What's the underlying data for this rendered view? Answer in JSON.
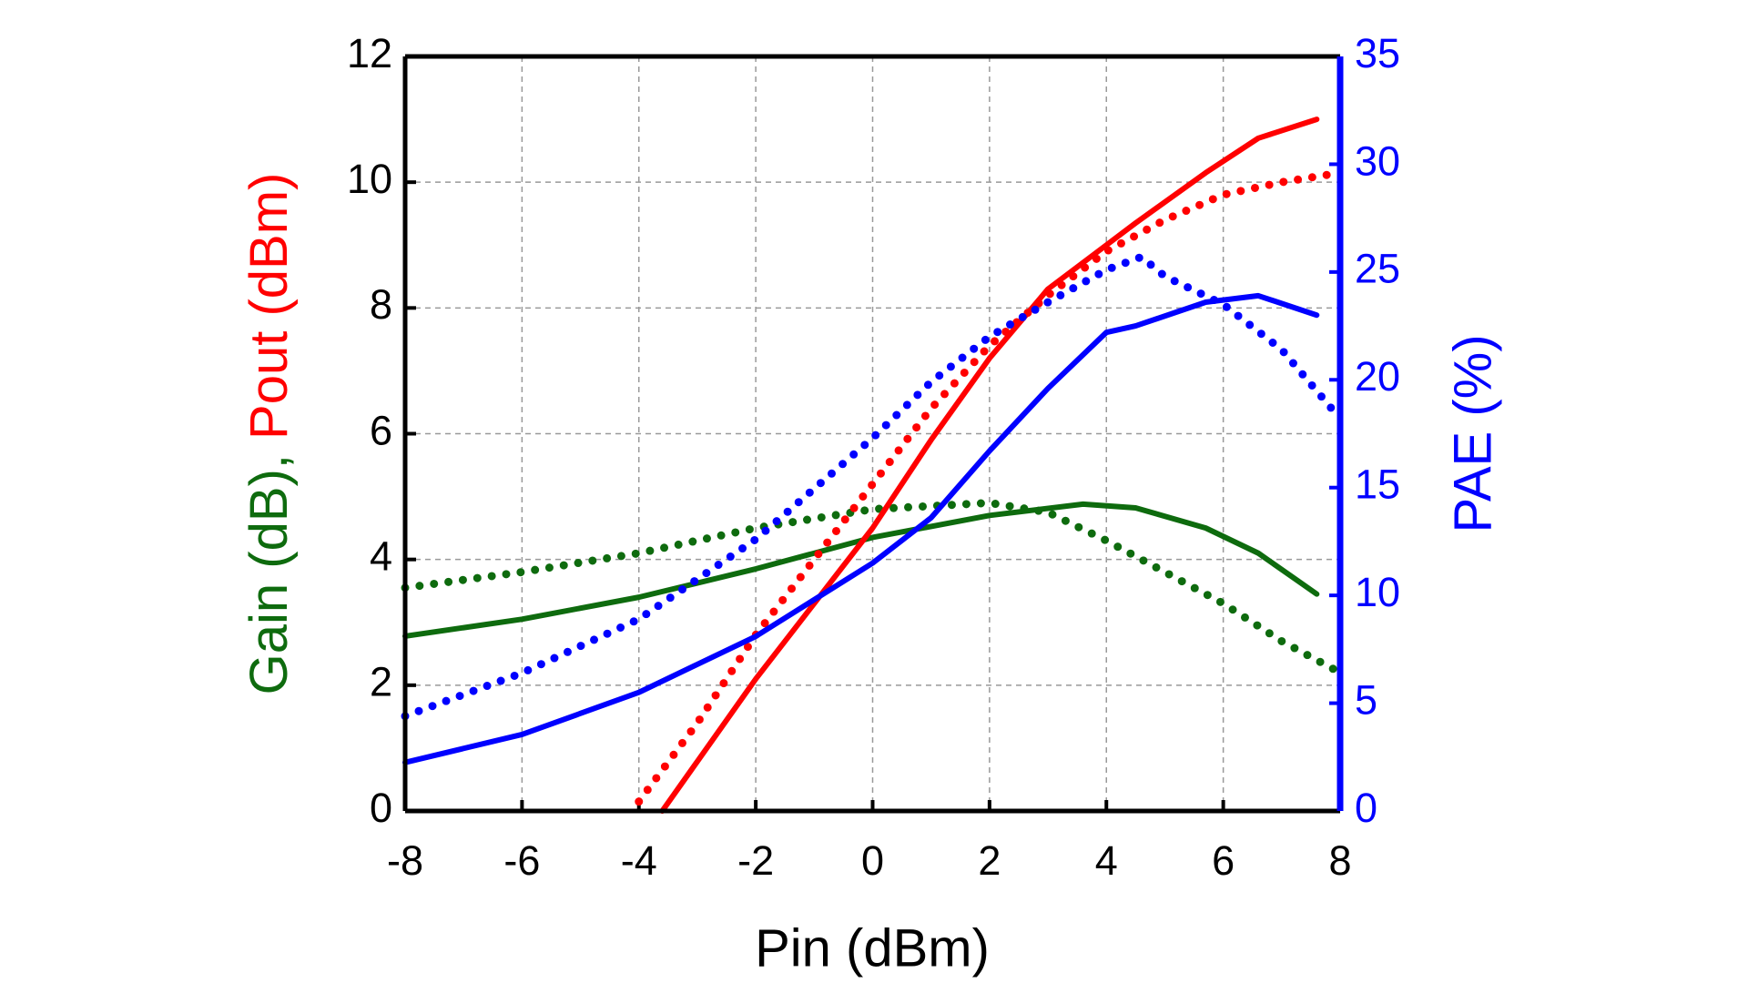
{
  "chart_data": {
    "type": "line",
    "xlabel": "Pin (dBm)",
    "ylabel": [
      {
        "text": "Gain (dB)",
        "color": "#0e6b0e"
      },
      {
        "text": ", ",
        "color": "#0e6b0e"
      },
      {
        "text": "Pout (dBm)",
        "color": "#ff0000"
      }
    ],
    "y2label": "PAE (%)",
    "y2color": "#0000ff",
    "xlim": [
      -8,
      8
    ],
    "xticks": [
      -8,
      -6,
      -4,
      -2,
      0,
      2,
      4,
      6,
      8
    ],
    "ylim": [
      0,
      12
    ],
    "yticks": [
      0,
      2,
      4,
      6,
      8,
      10,
      12
    ],
    "y2lim": [
      0,
      35
    ],
    "y2ticks": [
      0,
      5,
      10,
      15,
      20,
      25,
      30,
      35
    ],
    "grid": true,
    "series": [
      {
        "color": "#0e6b0e",
        "line_style": "solid",
        "x": [
          -8,
          -6,
          -4,
          -2,
          0,
          2,
          3.6,
          4.5,
          5.7,
          6.6,
          7.6
        ],
        "values": [
          2.78,
          3.05,
          3.4,
          3.85,
          4.35,
          4.7,
          4.88,
          4.82,
          4.5,
          4.1,
          3.45
        ]
      },
      {
        "color": "#0e6b0e",
        "line_style": "dotted",
        "x": [
          -8,
          -6,
          -4,
          -2,
          0,
          2,
          3,
          4,
          5,
          6,
          7,
          8
        ],
        "values": [
          3.55,
          3.8,
          4.1,
          4.5,
          4.8,
          4.9,
          4.75,
          4.3,
          3.8,
          3.3,
          2.7,
          2.2
        ]
      },
      {
        "color": "#ff0000",
        "line_style": "solid",
        "x": [
          -3.6,
          -2,
          -1,
          0,
          1,
          2,
          3,
          4,
          4.5,
          5.7,
          6.6,
          7.6
        ],
        "values": [
          0,
          2.1,
          3.3,
          4.5,
          5.9,
          7.2,
          8.3,
          9.0,
          9.35,
          10.15,
          10.7,
          11.0
        ]
      },
      {
        "color": "#ff0000",
        "line_style": "dotted",
        "x": [
          -4,
          -3,
          -2,
          -1,
          0,
          1,
          2,
          3,
          4,
          5,
          6,
          7,
          8
        ],
        "values": [
          0.15,
          1.4,
          2.8,
          4.0,
          5.2,
          6.4,
          7.4,
          8.2,
          8.9,
          9.4,
          9.8,
          10.0,
          10.15
        ]
      },
      {
        "color": "#0000ff",
        "line_style": "solid",
        "axis": "y2",
        "x": [
          -8,
          -6,
          -4,
          -2,
          0,
          1,
          2,
          3,
          4,
          4.5,
          5.7,
          6.6,
          7.6
        ],
        "values": [
          2.25,
          3.55,
          5.5,
          8.1,
          11.5,
          13.6,
          16.7,
          19.6,
          22.2,
          22.5,
          23.6,
          23.9,
          23.0
        ]
      },
      {
        "color": "#0000ff",
        "line_style": "dotted",
        "axis": "y2",
        "x": [
          -8,
          -6,
          -4,
          -2,
          0,
          1,
          2,
          3,
          4,
          4.6,
          5,
          6,
          7,
          8
        ],
        "values": [
          4.4,
          6.4,
          8.9,
          12.6,
          17.3,
          19.9,
          22.0,
          23.6,
          25.1,
          25.7,
          24.8,
          23.5,
          21.4,
          18.2
        ]
      }
    ]
  }
}
